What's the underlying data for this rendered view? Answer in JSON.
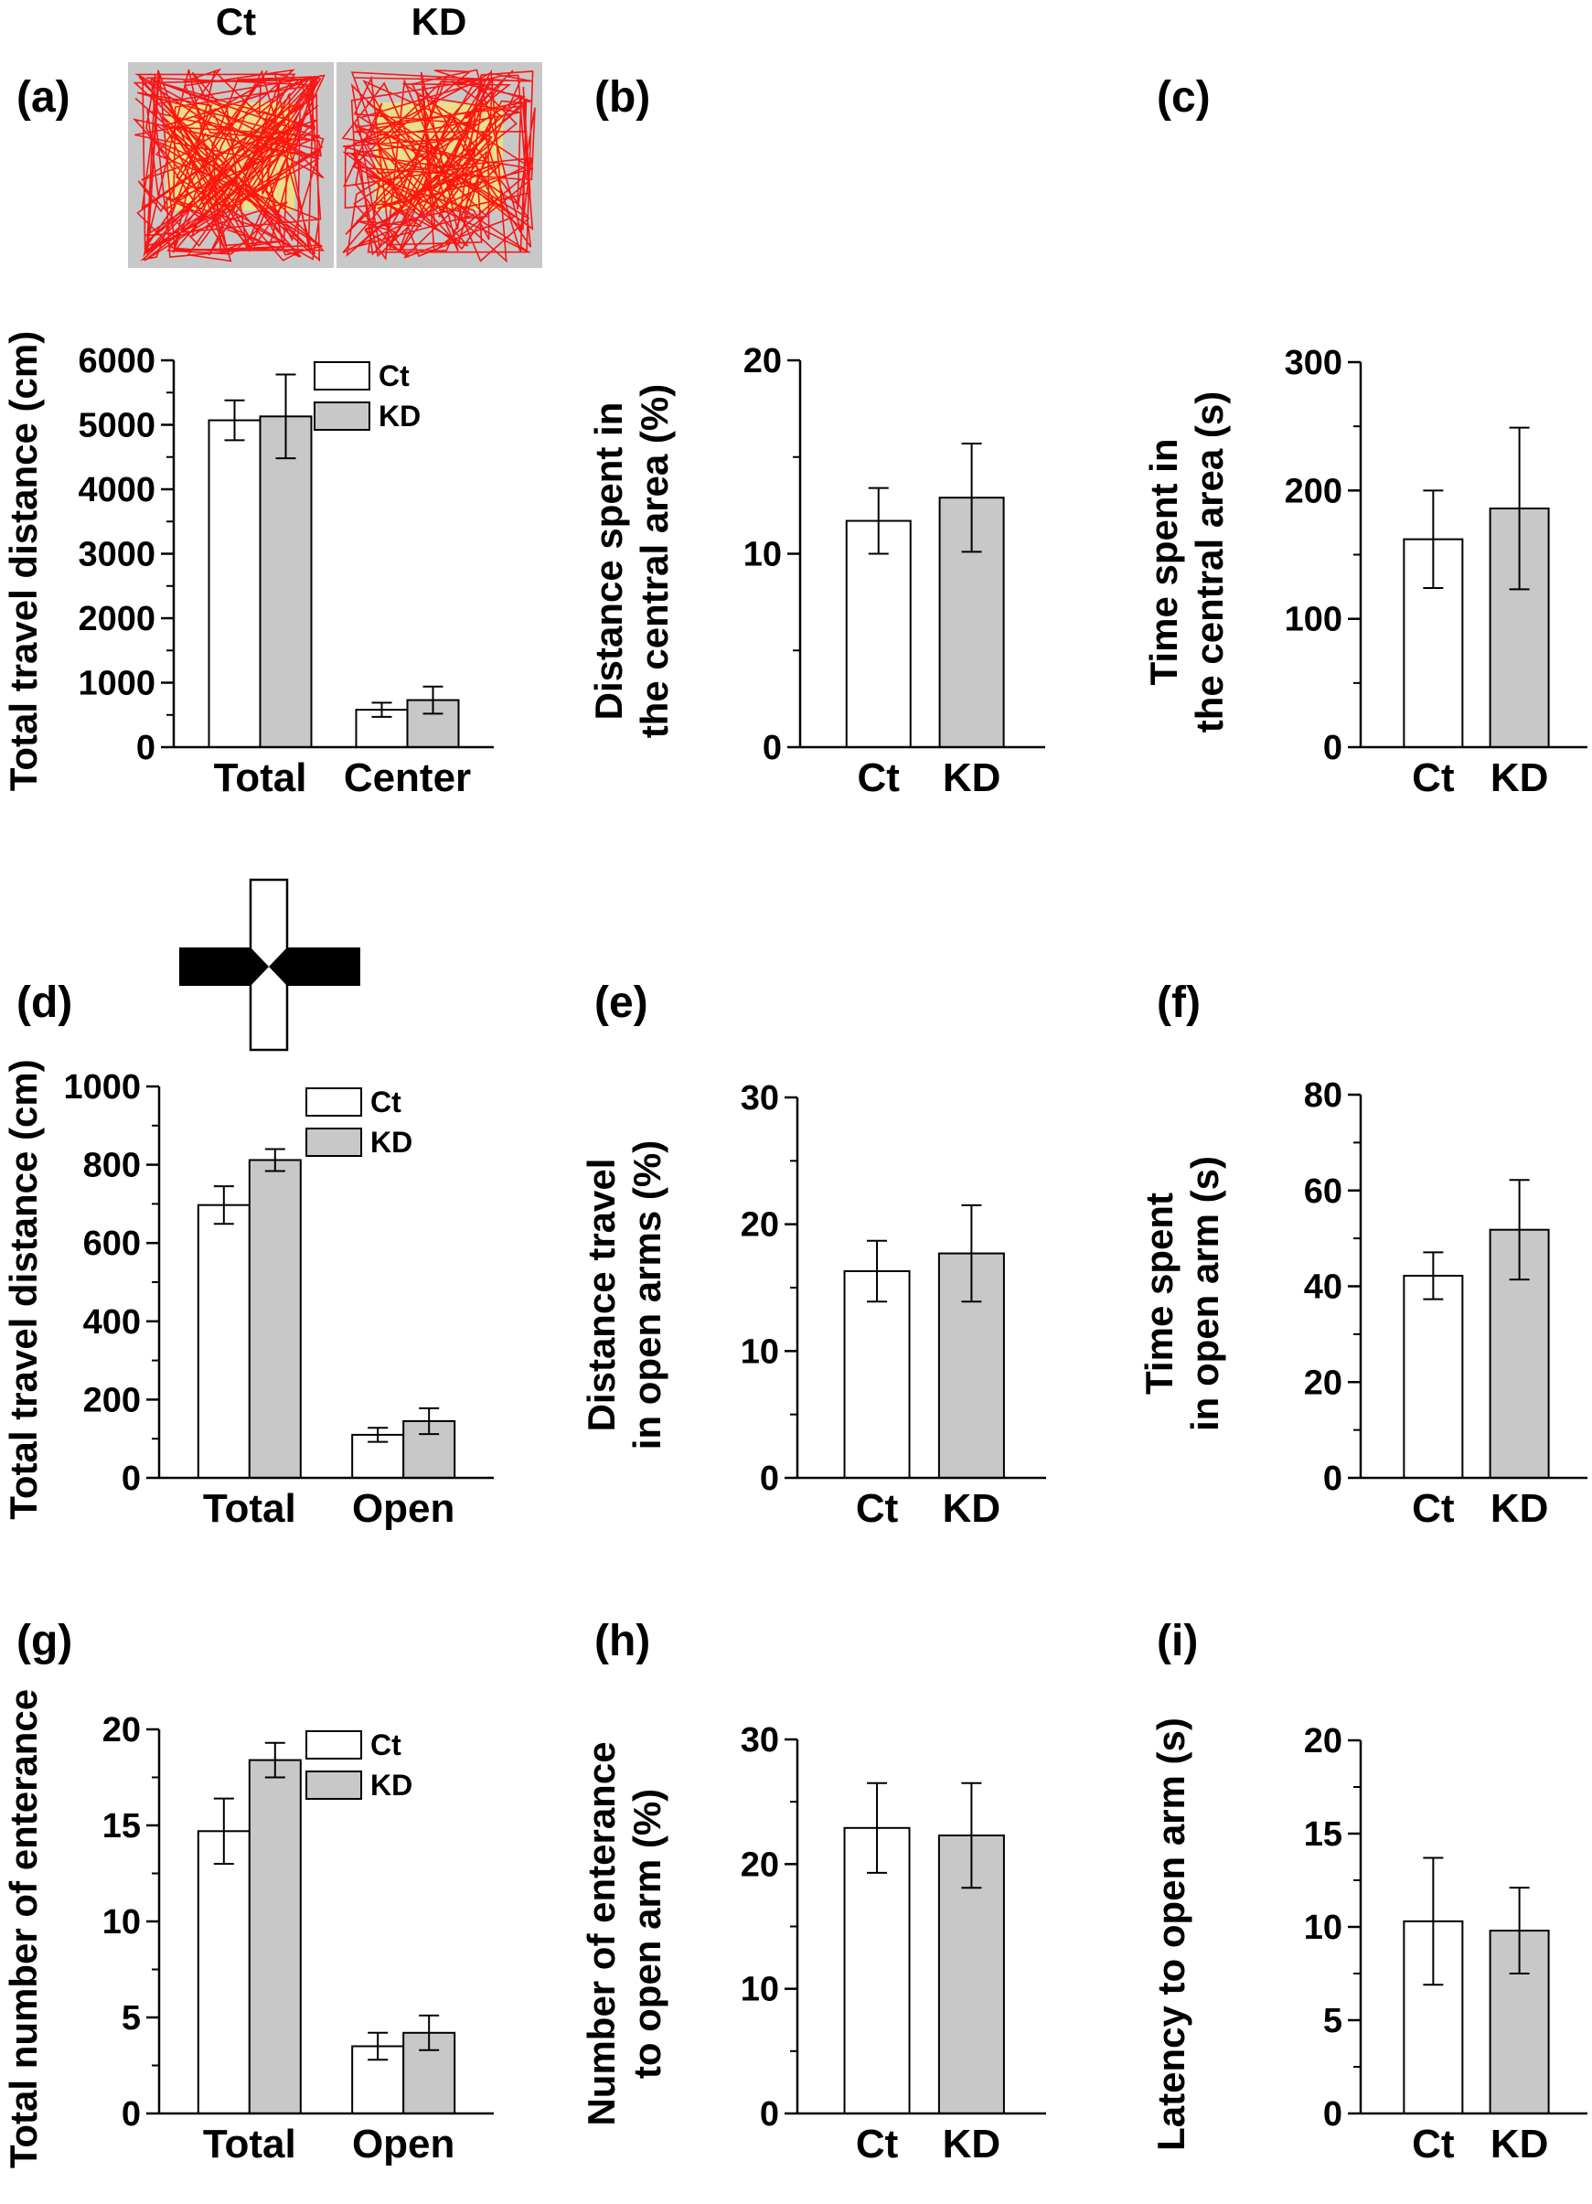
{
  "colors": {
    "ct": "#ffffff",
    "kd": "#c8c8c8",
    "stroke": "#000000",
    "arena_bg": "#c8c8c8",
    "arena_center": "#e8e08a",
    "trace": "#ff0000",
    "maze_closed": "#000000"
  },
  "open_field_inset": {
    "labels": [
      "Ct",
      "KD"
    ]
  },
  "chart_data": [
    {
      "panel": "(a)",
      "type": "bar",
      "ylabel": "Total travel distance (cm)",
      "ylim": [
        0,
        6000
      ],
      "yticks": [
        0,
        1000,
        2000,
        3000,
        4000,
        5000,
        6000
      ],
      "minor_ticks": true,
      "categories": [
        "Total",
        "Center"
      ],
      "legend": [
        "Ct",
        "KD"
      ],
      "legend_placement": "top-right",
      "series": [
        {
          "name": "Ct",
          "values": [
            5070,
            580
          ],
          "errors": [
            310,
            110
          ]
        },
        {
          "name": "KD",
          "values": [
            5130,
            730
          ],
          "errors": [
            650,
            210
          ]
        }
      ]
    },
    {
      "panel": "(b)",
      "type": "bar",
      "ylabel": [
        "Distance spent in",
        "the central area (%)"
      ],
      "ylim": [
        0,
        20
      ],
      "yticks": [
        0,
        10,
        20
      ],
      "minor_ticks": true,
      "categories": [
        "Ct",
        "KD"
      ],
      "values": [
        11.7,
        12.9
      ],
      "errors": [
        1.7,
        2.8
      ]
    },
    {
      "panel": "(c)",
      "type": "bar",
      "ylabel": [
        "Time spent in",
        "the central area (s)"
      ],
      "ylim": [
        0,
        300
      ],
      "yticks": [
        0,
        100,
        200,
        300
      ],
      "minor_ticks": true,
      "categories": [
        "Ct",
        "KD"
      ],
      "values": [
        162,
        186
      ],
      "errors": [
        38,
        63
      ]
    },
    {
      "panel": "(d)",
      "type": "bar",
      "ylabel": "Total travel distance (cm)",
      "ylim": [
        0,
        1000
      ],
      "yticks": [
        0,
        200,
        400,
        600,
        800,
        1000
      ],
      "minor_ticks": true,
      "categories": [
        "Total",
        "Open"
      ],
      "legend": [
        "Ct",
        "KD"
      ],
      "legend_placement": "top-right",
      "series": [
        {
          "name": "Ct",
          "values": [
            697,
            110
          ],
          "errors": [
            48,
            18
          ]
        },
        {
          "name": "KD",
          "values": [
            812,
            145
          ],
          "errors": [
            28,
            33
          ]
        }
      ]
    },
    {
      "panel": "(e)",
      "type": "bar",
      "ylabel": [
        "Distance travel",
        "in open arms (%)"
      ],
      "ylim": [
        0,
        30
      ],
      "yticks": [
        0,
        10,
        20,
        30
      ],
      "minor_ticks": true,
      "categories": [
        "Ct",
        "KD"
      ],
      "values": [
        16.3,
        17.7
      ],
      "errors": [
        2.4,
        3.8
      ]
    },
    {
      "panel": "(f)",
      "type": "bar",
      "ylabel": [
        "Time spent",
        "in open arm (s)"
      ],
      "ylim": [
        0,
        80
      ],
      "yticks": [
        0,
        20,
        40,
        60,
        80
      ],
      "minor_ticks": true,
      "categories": [
        "Ct",
        "KD"
      ],
      "values": [
        42.2,
        51.8
      ],
      "errors": [
        4.9,
        10.4
      ]
    },
    {
      "panel": "(g)",
      "type": "bar",
      "ylabel": "Total number of enterance",
      "ylim": [
        0,
        20
      ],
      "yticks": [
        0,
        5,
        10,
        15,
        20
      ],
      "minor_ticks": true,
      "categories": [
        "Total",
        "Open"
      ],
      "legend": [
        "Ct",
        "KD"
      ],
      "legend_placement": "top-right",
      "series": [
        {
          "name": "Ct",
          "values": [
            14.7,
            3.5
          ],
          "errors": [
            1.7,
            0.7
          ]
        },
        {
          "name": "KD",
          "values": [
            18.4,
            4.2
          ],
          "errors": [
            0.9,
            0.9
          ]
        }
      ]
    },
    {
      "panel": "(h)",
      "type": "bar",
      "ylabel": [
        "Number of enterance",
        "to open arm (%)"
      ],
      "ylim": [
        0,
        30
      ],
      "yticks": [
        0,
        10,
        20,
        30
      ],
      "minor_ticks": true,
      "categories": [
        "Ct",
        "KD"
      ],
      "values": [
        22.9,
        22.3
      ],
      "errors": [
        3.6,
        4.2
      ]
    },
    {
      "panel": "(i)",
      "type": "bar",
      "ylabel": "Latency to open arm (s)",
      "ylim": [
        0,
        20
      ],
      "yticks": [
        0,
        5,
        10,
        15,
        20
      ],
      "minor_ticks": true,
      "categories": [
        "Ct",
        "KD"
      ],
      "values": [
        10.3,
        9.8
      ],
      "errors": [
        3.4,
        2.3
      ]
    }
  ]
}
